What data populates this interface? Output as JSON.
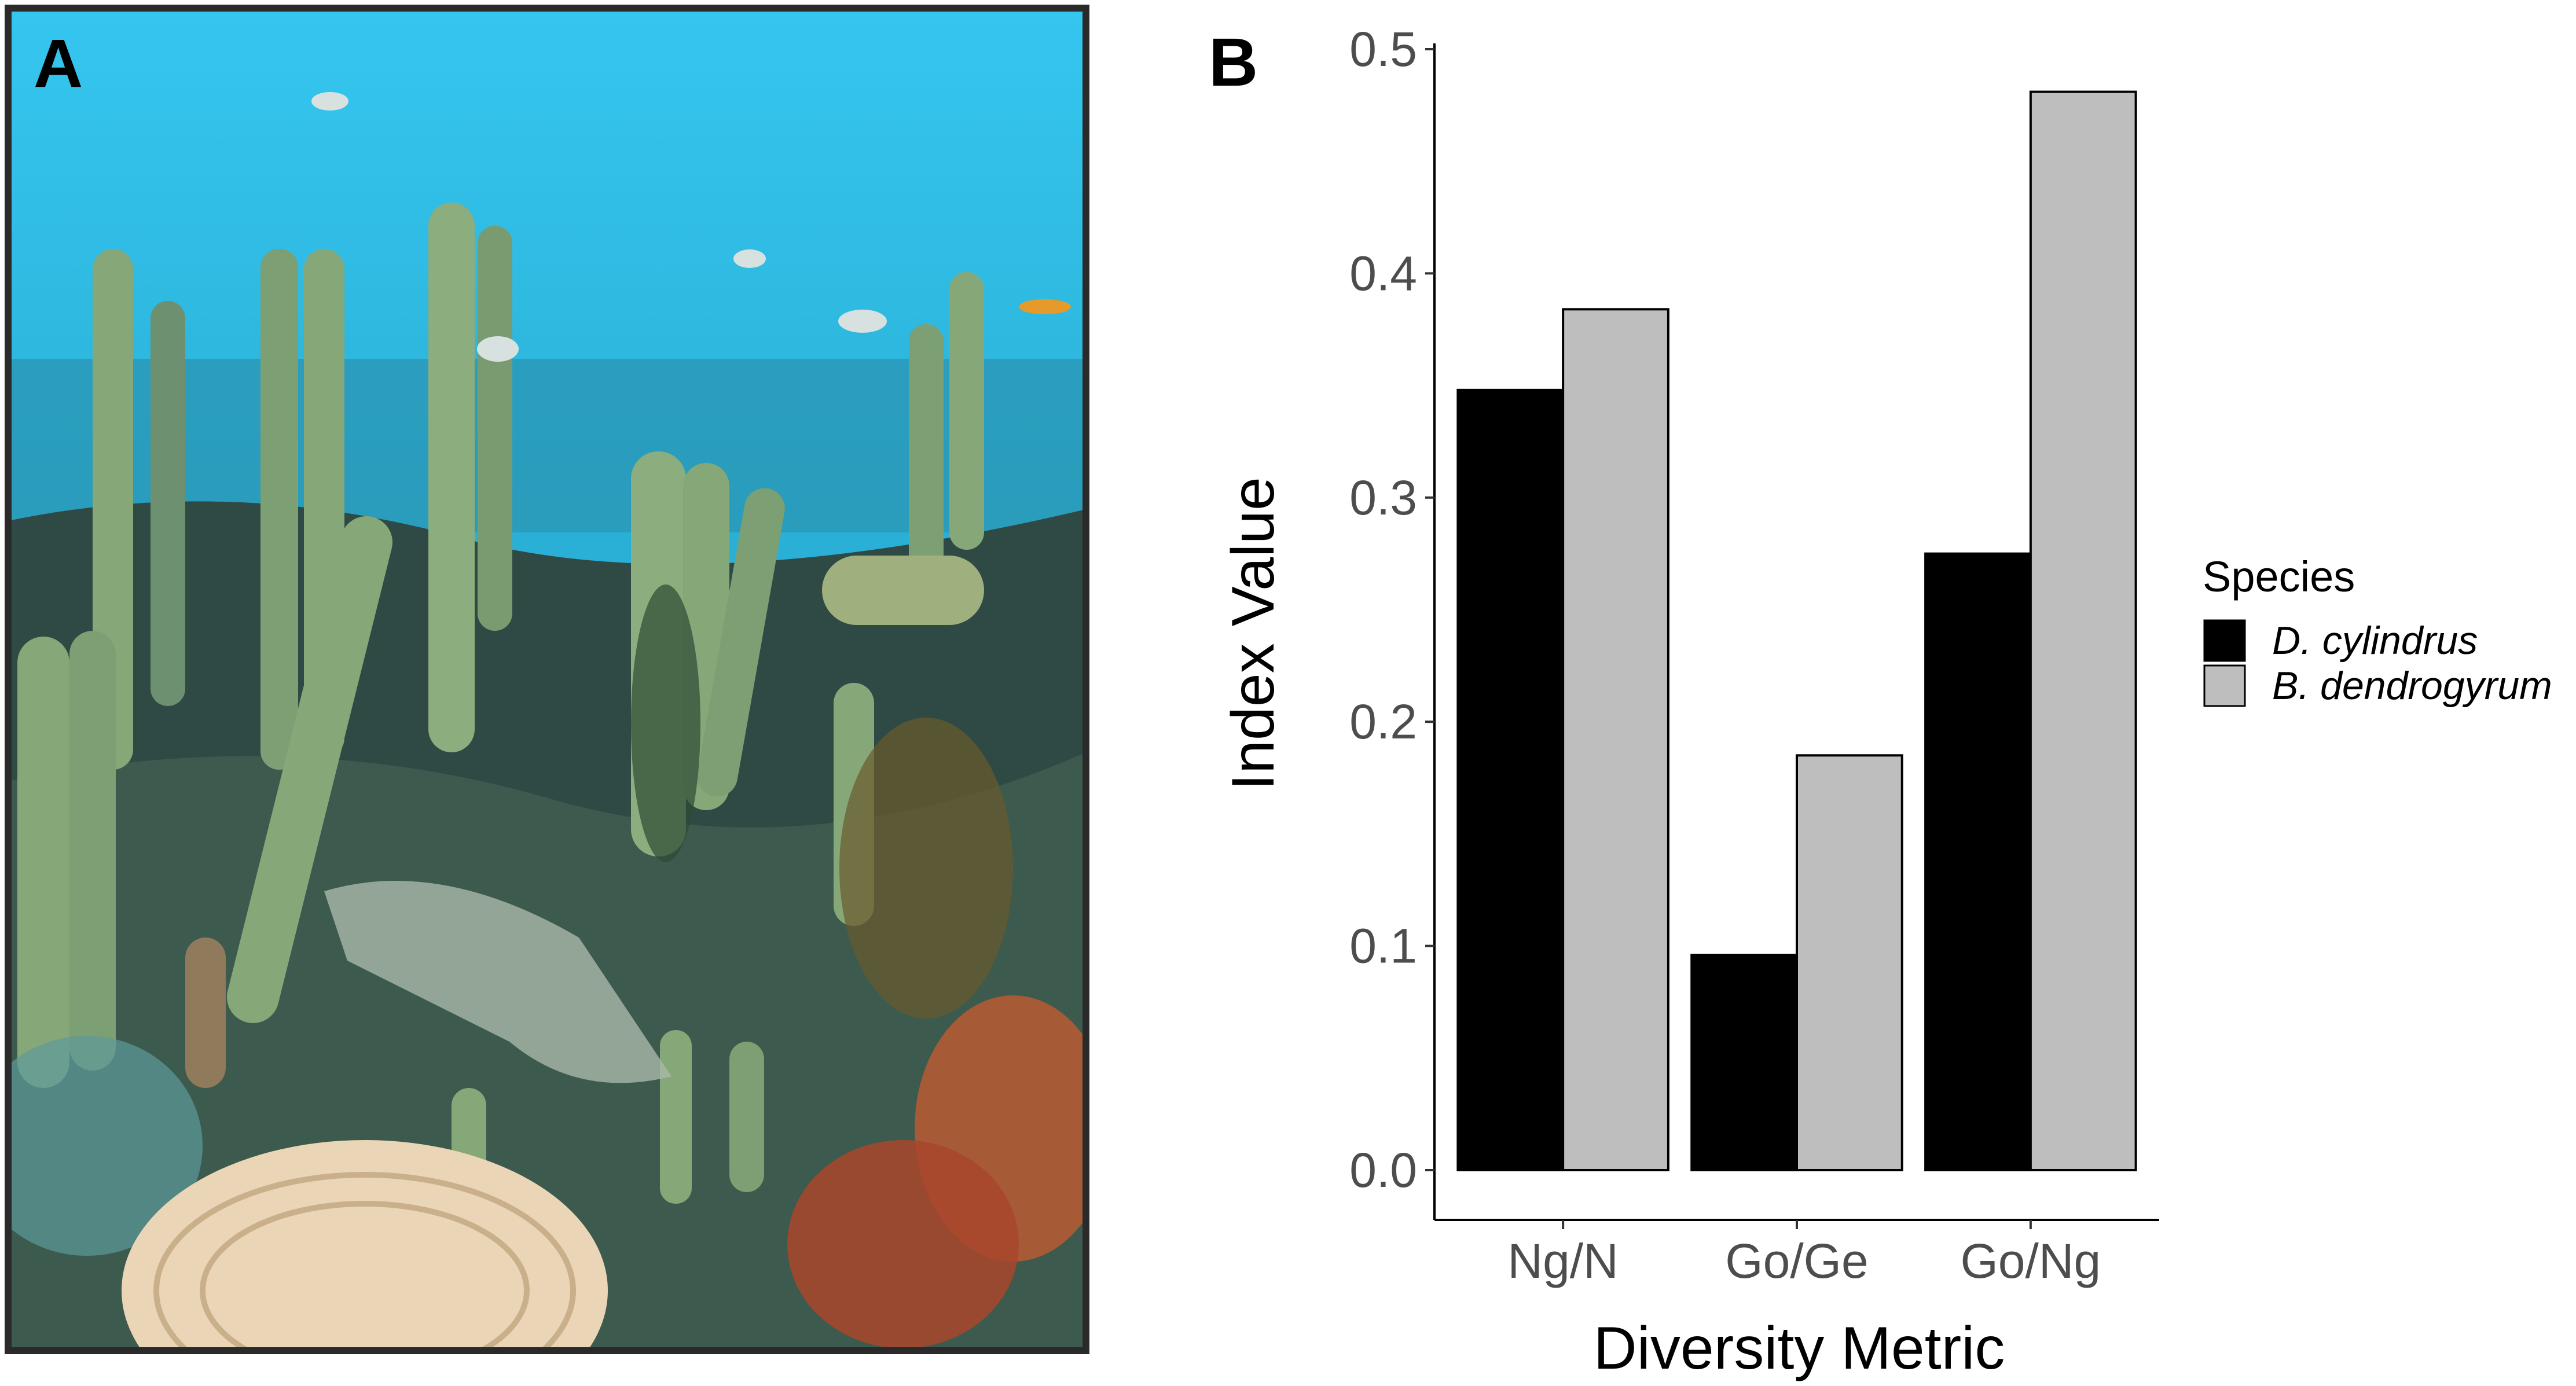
{
  "panels": {
    "photo_letter": "A",
    "chart_letter": "B"
  },
  "photo": {
    "colors": {
      "water_top": "#35c6ef",
      "water_bottom": "#1a8fb2",
      "coral": "#86a878",
      "coral_shadow": "#4e6f52",
      "reef": "#2f4a44",
      "fan": "#b85a33",
      "brain_coral": "#ead6b6",
      "border": "#2a2a2a"
    }
  },
  "chart_data": {
    "type": "bar",
    "categories": [
      "Ng/N",
      "Go/Ge",
      "Go/Ng"
    ],
    "series": [
      {
        "name": "D. cylindrus",
        "values": [
          0.348,
          0.096,
          0.275
        ],
        "color": "#000000"
      },
      {
        "name": "B. dendrogyrum",
        "values": [
          0.384,
          0.185,
          0.481
        ],
        "color": "#bebebe"
      }
    ],
    "xlabel": "Diversity Metric",
    "ylabel": "Index Value",
    "ylim": [
      0,
      0.5
    ],
    "yticks": [
      "0.0",
      "0.1",
      "0.2",
      "0.3",
      "0.4",
      "0.5"
    ],
    "legend_title": "Species",
    "legend_position": "right",
    "grid": false
  }
}
